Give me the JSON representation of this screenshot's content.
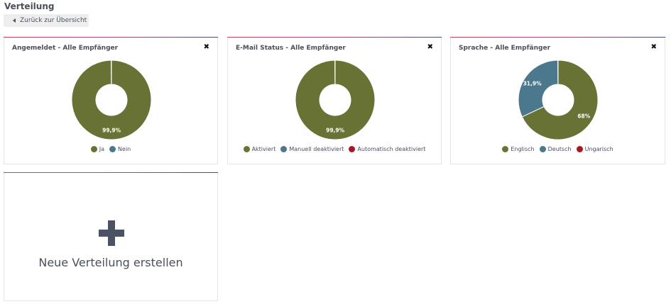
{
  "page": {
    "title": "Verteilung",
    "back_label": "Zurück zur Übersicht"
  },
  "colors": {
    "olive": "#697235",
    "blue": "#4b788d",
    "red": "#a3191f"
  },
  "cards": [
    {
      "title": "Angemeldet - Alle Empfänger",
      "close_icon": "close-icon",
      "chart_data": {
        "type": "pie",
        "style": "donut",
        "slices": [
          {
            "label": "Ja",
            "value": 99.9,
            "color": "#697235",
            "data_label": "99,9%"
          },
          {
            "label": "Nein",
            "value": 0.1,
            "color": "#4b788d",
            "data_label": ""
          }
        ],
        "legend": [
          "Ja",
          "Nein"
        ],
        "legend_position": "bottom"
      }
    },
    {
      "title": "E-Mail Status - Alle Empfänger",
      "close_icon": "close-icon",
      "chart_data": {
        "type": "pie",
        "style": "donut",
        "slices": [
          {
            "label": "Aktiviert",
            "value": 99.9,
            "color": "#697235",
            "data_label": "99,9%"
          },
          {
            "label": "Manuell deaktiviert",
            "value": 0.1,
            "color": "#4b788d",
            "data_label": ""
          },
          {
            "label": "Automatisch deaktiviert",
            "value": 0.0,
            "color": "#a3191f",
            "data_label": ""
          }
        ],
        "legend": [
          "Aktiviert",
          "Manuell deaktiviert",
          "Automatisch deaktiviert"
        ],
        "legend_position": "bottom"
      }
    },
    {
      "title": "Sprache - Alle Empfänger",
      "close_icon": "close-icon",
      "chart_data": {
        "type": "pie",
        "style": "donut",
        "slices": [
          {
            "label": "Englisch",
            "value": 68,
            "color": "#697235",
            "data_label": "68%"
          },
          {
            "label": "Deutsch",
            "value": 31.9,
            "color": "#4b788d",
            "data_label": "31,9%"
          },
          {
            "label": "Ungarisch",
            "value": 0.1,
            "color": "#a3191f",
            "data_label": ""
          }
        ],
        "legend": [
          "Englisch",
          "Deutsch",
          "Ungarisch"
        ],
        "legend_position": "bottom"
      }
    }
  ],
  "new_card": {
    "icon": "plus-icon",
    "label": "Neue Verteilung erstellen"
  }
}
